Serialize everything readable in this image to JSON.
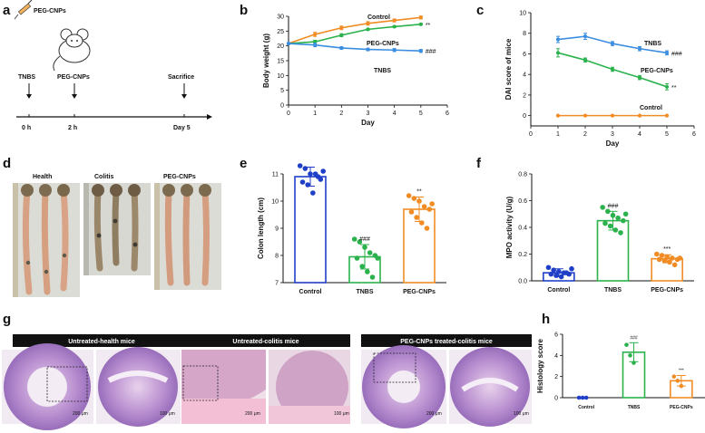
{
  "panels": {
    "a": "a",
    "b": "b",
    "c": "c",
    "d": "d",
    "e": "e",
    "f": "f",
    "g": "g",
    "h": "h"
  },
  "colors": {
    "control": "#f18c25",
    "peg": "#2bb24c",
    "tnbs": "#3b8de0",
    "blue": "#1f3fc8",
    "green": "#2bb24c",
    "orange": "#f18c25"
  },
  "schematic": {
    "drug_label": "PEG-CNPs",
    "events": [
      {
        "label": "TNBS",
        "time": "0 h"
      },
      {
        "label": "PEG-CNPs",
        "time": "2 h"
      },
      {
        "label": "Sacrifice",
        "time": "Day 5"
      }
    ]
  },
  "photos": {
    "labels": [
      "Health",
      "Colitis",
      "PEG-CNPs"
    ]
  },
  "histology": {
    "titles": [
      "Untreated-health mice",
      "Untreated-colitis mice",
      "PEG-CNPs treated-colitis mice"
    ],
    "scale_low": "200 μm",
    "scale_high": "100 μm"
  },
  "chart_data": [
    {
      "id": "b",
      "type": "line",
      "xlabel": "Day",
      "ylabel": "Body weight (g)",
      "xlim": [
        0,
        6
      ],
      "ylim": [
        0,
        30
      ],
      "xticks": [
        0,
        1,
        2,
        3,
        4,
        5,
        6
      ],
      "yticks": [
        0,
        5,
        10,
        15,
        20,
        25,
        30
      ],
      "x": [
        0,
        1,
        2,
        3,
        4,
        5
      ],
      "series": [
        {
          "name": "Control",
          "color": "#f18c25",
          "values": [
            20.8,
            23.9,
            26.1,
            27.6,
            28.6,
            29.6
          ],
          "err": [
            0.3,
            0.7,
            0.6,
            0.6,
            0.5,
            0.5
          ],
          "annotation": ""
        },
        {
          "name": "PEG-CNPs",
          "color": "#2bb24c",
          "values": [
            20.8,
            21.4,
            23.6,
            25.6,
            26.5,
            27.3
          ],
          "err": [
            0.3,
            0.5,
            0.5,
            0.3,
            0.3,
            0.3
          ],
          "annotation": "**"
        },
        {
          "name": "TNBS",
          "color": "#3b8de0",
          "values": [
            20.8,
            20.3,
            19.3,
            18.8,
            18.6,
            18.3
          ],
          "err": [
            0.3,
            0.6,
            0.4,
            0.4,
            0.5,
            0.5
          ],
          "annotation": "###"
        }
      ]
    },
    {
      "id": "c",
      "type": "line",
      "xlabel": "Day",
      "ylabel": "DAI score of mice",
      "xlim": [
        0,
        6
      ],
      "ylim": [
        -1,
        10
      ],
      "xticks": [
        0,
        1,
        2,
        3,
        4,
        5,
        6
      ],
      "yticks": [
        0,
        2,
        4,
        6,
        8,
        10
      ],
      "x": [
        1,
        2,
        3,
        4,
        5
      ],
      "series": [
        {
          "name": "TNBS",
          "color": "#3b8de0",
          "values": [
            7.4,
            7.7,
            7.0,
            6.5,
            6.1
          ],
          "err": [
            0.3,
            0.3,
            0.2,
            0.2,
            0.2
          ],
          "annotation": "###"
        },
        {
          "name": "PEG-CNPs",
          "color": "#2bb24c",
          "values": [
            6.1,
            5.4,
            4.5,
            3.7,
            2.8
          ],
          "err": [
            0.4,
            0.2,
            0.2,
            0.2,
            0.3
          ],
          "annotation": "**"
        },
        {
          "name": "Control",
          "color": "#f18c25",
          "values": [
            0,
            0,
            0,
            0,
            0
          ],
          "err": [
            0,
            0,
            0,
            0,
            0
          ],
          "annotation": ""
        }
      ]
    },
    {
      "id": "e",
      "type": "bar",
      "ylabel": "Colon length (cm)",
      "ylim": [
        7,
        11
      ],
      "yticks": [
        7,
        8,
        9,
        10,
        11
      ],
      "categories": [
        "Control",
        "TNBS",
        "PEG-CNPs"
      ],
      "values": [
        10.9,
        7.95,
        9.7
      ],
      "err": [
        0.35,
        0.45,
        0.45
      ],
      "annotations": [
        "",
        "###",
        "**"
      ],
      "bar_colors": [
        "#1f3fc8",
        "#2bb24c",
        "#f18c25"
      ],
      "points": [
        [
          11.3,
          11.2,
          11.0,
          11.0,
          10.8,
          10.7,
          10.6,
          10.3,
          10.9,
          11.1
        ],
        [
          8.6,
          8.5,
          8.3,
          8.1,
          8.0,
          7.9,
          7.6,
          7.4,
          7.2,
          7.9
        ],
        [
          10.2,
          10.1,
          10.0,
          9.8,
          9.7,
          9.6,
          9.4,
          9.2,
          9.0,
          9.9
        ]
      ]
    },
    {
      "id": "f",
      "type": "bar",
      "ylabel": "MPO activity (U/g)",
      "ylim": [
        0,
        0.8
      ],
      "yticks": [
        0.0,
        0.2,
        0.4,
        0.6,
        0.8
      ],
      "categories": [
        "Control",
        "TNBS",
        "PEG-CNPs"
      ],
      "values": [
        0.06,
        0.45,
        0.165
      ],
      "err": [
        0.03,
        0.07,
        0.03
      ],
      "annotations": [
        "",
        "###",
        "***"
      ],
      "bar_colors": [
        "#1f3fc8",
        "#2bb24c",
        "#f18c25"
      ],
      "points": [
        [
          0.1,
          0.08,
          0.07,
          0.06,
          0.05,
          0.05,
          0.04,
          0.03,
          0.06,
          0.09
        ],
        [
          0.55,
          0.52,
          0.49,
          0.47,
          0.45,
          0.43,
          0.41,
          0.38,
          0.36,
          0.5
        ],
        [
          0.2,
          0.19,
          0.18,
          0.17,
          0.16,
          0.16,
          0.15,
          0.14,
          0.12,
          0.17
        ]
      ]
    },
    {
      "id": "h",
      "type": "bar",
      "ylabel": "Histology score",
      "ylim": [
        0,
        6
      ],
      "yticks": [
        0,
        2,
        4,
        6
      ],
      "categories": [
        "Control",
        "TNBS",
        "PEG-CNPs"
      ],
      "values": [
        0,
        4.3,
        1.6
      ],
      "err": [
        0,
        0.9,
        0.5
      ],
      "annotations": [
        "",
        "###",
        "***"
      ],
      "bar_colors": [
        "#1f3fc8",
        "#2bb24c",
        "#f18c25"
      ],
      "points": [
        [
          0,
          0,
          0
        ],
        [
          5.0,
          4.0,
          3.3
        ],
        [
          2.0,
          1.6,
          1.1
        ]
      ]
    }
  ]
}
